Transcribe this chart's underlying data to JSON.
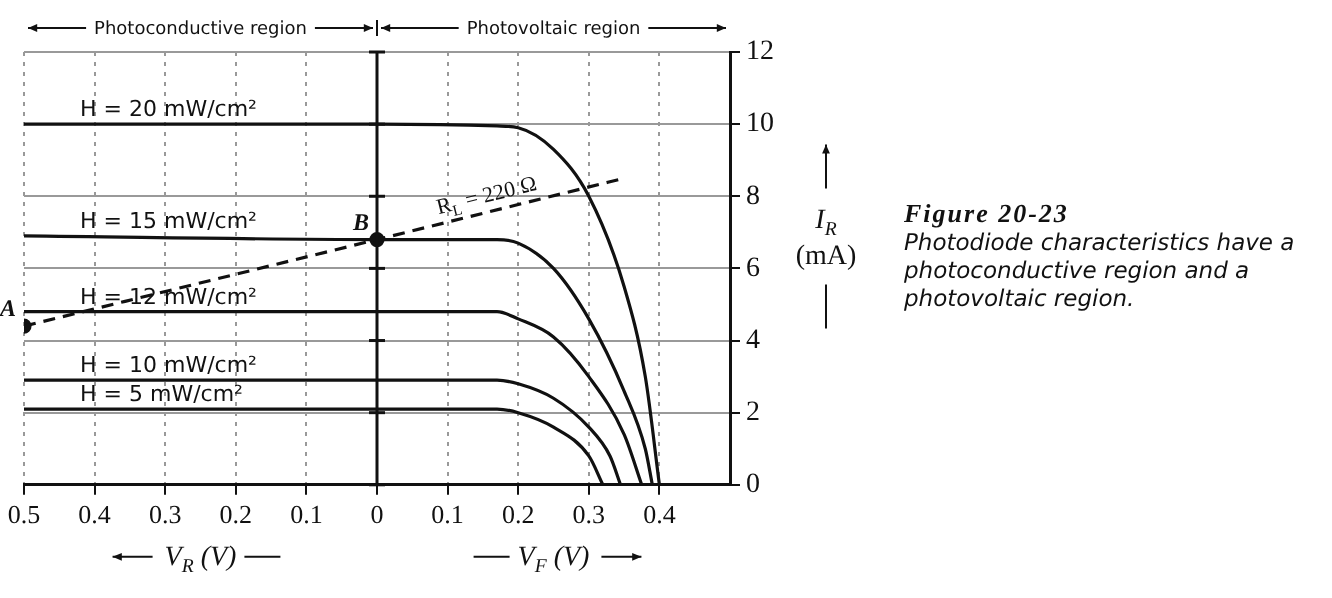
{
  "chart_data": {
    "type": "line",
    "xlim": [
      -0.5,
      0.5
    ],
    "ylim": [
      0,
      12
    ],
    "xticks": [
      {
        "value": -0.5,
        "label": "0.5"
      },
      {
        "value": -0.4,
        "label": "0.4"
      },
      {
        "value": -0.3,
        "label": "0.3"
      },
      {
        "value": -0.2,
        "label": "0.2"
      },
      {
        "value": -0.1,
        "label": "0.1"
      },
      0,
      0.1,
      0.2,
      0.3,
      0.4
    ],
    "yticks": [
      0,
      2,
      4,
      6,
      8,
      10,
      12
    ],
    "ylabel": "I$_{R}$ (mA)",
    "grid": true,
    "legend": false,
    "marker": "none",
    "line_style": "solid",
    "series": [
      {
        "name": "H = 20 mW/cm²",
        "color": "#111111",
        "x": [
          -0.5,
          0,
          0.17,
          0.2,
          0.25,
          0.3,
          0.35,
          0.38,
          0.4
        ],
        "values": [
          10,
          10,
          9.95,
          9.9,
          9.3,
          8,
          5.5,
          3,
          0
        ]
      },
      {
        "name": "H = 15 mW/cm²",
        "color": "#111111",
        "x": [
          -0.5,
          0,
          0.17,
          0.2,
          0.25,
          0.3,
          0.35,
          0.38,
          0.39
        ],
        "values": [
          6.9,
          6.8,
          6.8,
          6.7,
          6,
          4.6,
          2.6,
          1,
          0
        ]
      },
      {
        "name": "H = 12 mW/cm²",
        "color": "#111111",
        "x": [
          -0.5,
          0,
          0.17,
          0.2,
          0.25,
          0.3,
          0.35,
          0.375
        ],
        "values": [
          4.8,
          4.8,
          4.8,
          4.6,
          4.1,
          3,
          1.4,
          0
        ]
      },
      {
        "name": "H = 10 mW/cm²",
        "color": "#111111",
        "x": [
          -0.5,
          0,
          0.17,
          0.2,
          0.25,
          0.3,
          0.33,
          0.345
        ],
        "values": [
          2.9,
          2.9,
          2.9,
          2.8,
          2.4,
          1.6,
          0.8,
          0
        ]
      },
      {
        "name": "H = 5 mW/cm²",
        "color": "#111111",
        "x": [
          -0.5,
          0,
          0.17,
          0.2,
          0.25,
          0.3,
          0.32
        ],
        "values": [
          2.1,
          2.1,
          2.1,
          2,
          1.6,
          0.8,
          0
        ]
      },
      {
        "color": "#111111",
        "line_style": "dashed",
        "x": [
          -0.5,
          0,
          0.35
        ],
        "values": [
          4.4,
          6.8,
          8.5
        ]
      },
      {
        "type": "scatter",
        "color": "#111111",
        "marker": "circle",
        "x": [
          -0.5,
          0
        ],
        "values": [
          4.4,
          6.8
        ]
      }
    ],
    "annotations": [
      "Photoconductive region",
      "Photovoltaic region",
      {
        "text": "A",
        "x": -0.5,
        "y": 4.4
      },
      {
        "text": "B",
        "x": 0,
        "y": 6.8
      },
      "V$_{R}$ (V)",
      "V$_{F}$ (V)",
      "Figure 20-23",
      "Photodiode characteristics have a photoconductive region and a photovoltaic region.",
      "R$_{L}$ = 220 Ω"
    ]
  }
}
